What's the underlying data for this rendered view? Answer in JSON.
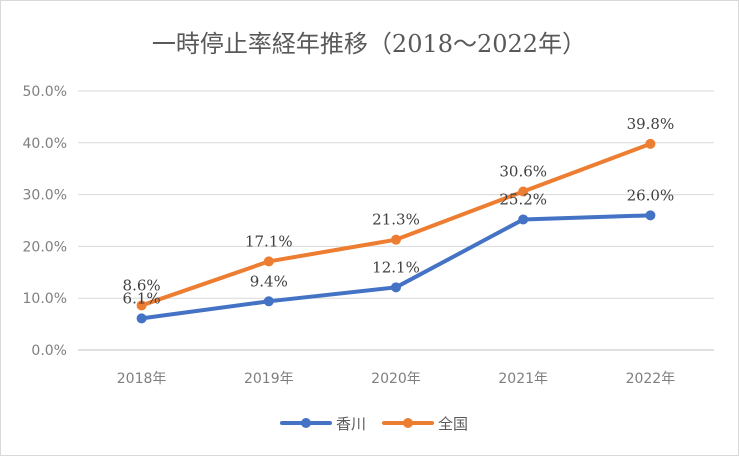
{
  "chart_data": {
    "type": "line",
    "title": "一時停止率経年推移（2018～2022年）",
    "categories": [
      "2018年",
      "2019年",
      "2020年",
      "2021年",
      "2022年"
    ],
    "y_tick_labels": [
      "0.0%",
      "10.0%",
      "20.0%",
      "30.0%",
      "40.0%",
      "50.0%"
    ],
    "ylim": [
      0,
      50
    ],
    "grid": true,
    "legend_position": "bottom",
    "series": [
      {
        "name": "香川",
        "values": [
          6.1,
          9.4,
          12.1,
          25.2,
          26.0
        ],
        "labels": [
          "6.1%",
          "9.4%",
          "12.1%",
          "25.2%",
          "26.0%"
        ],
        "color": "#4472c4"
      },
      {
        "name": "全国",
        "values": [
          8.6,
          17.1,
          21.3,
          30.6,
          39.8
        ],
        "labels": [
          "8.6%",
          "17.1%",
          "21.3%",
          "30.6%",
          "39.8%"
        ],
        "color": "#ed7d31"
      }
    ]
  }
}
